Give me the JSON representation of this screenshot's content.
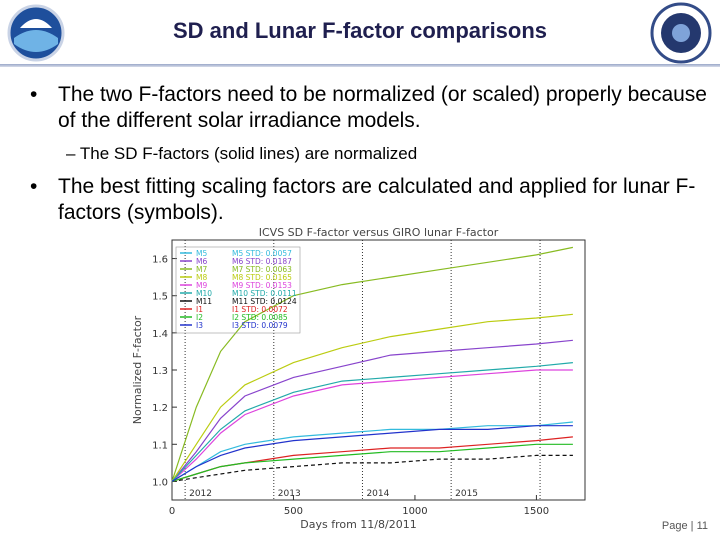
{
  "header": {
    "title": "SD and Lunar F-factor comparisons"
  },
  "bullets": [
    {
      "text": "The two F-factors need to be normalized (or scaled) properly because of the different solar irradiance models.",
      "sub": [
        "The SD F-factors (solid lines) are normalized"
      ]
    },
    {
      "text": "The best fitting scaling factors are calculated  and applied for lunar F-factors (symbols)."
    }
  ],
  "chart_data": {
    "type": "line",
    "title": "ICVS SD F-factor versus GIRO lunar F-factor",
    "x_label": "Days from 11/8/2011",
    "y_label": "Normalized F-factor",
    "x": [
      0,
      100,
      200,
      300,
      500,
      700,
      900,
      1100,
      1300,
      1500,
      1650
    ],
    "xlim": [
      0,
      1700
    ],
    "ylim": [
      0.95,
      1.65
    ],
    "xticks": [
      0,
      500,
      1000,
      1500
    ],
    "yticks": [
      {
        "value": 1,
        "label": "1.0"
      },
      1.1,
      1.2,
      1.3,
      1.4,
      1.5,
      1.6
    ],
    "year_lines": [
      {
        "value": 54,
        "label": "2012"
      },
      {
        "value": 419,
        "label": "2013"
      },
      {
        "value": 784,
        "label": "2014"
      },
      {
        "value": 1149,
        "label": "2015"
      },
      {
        "value": 1515,
        "label": ""
      }
    ],
    "series": [
      {
        "name": "M5",
        "std": "M5 STD: 0.0057",
        "color": "#33bbdd",
        "values": [
          1.0,
          1.04,
          1.08,
          1.1,
          1.12,
          1.13,
          1.14,
          1.14,
          1.15,
          1.15,
          1.16
        ]
      },
      {
        "name": "M6",
        "std": "M6 STD: 0.0187",
        "color": "#8844cc",
        "values": [
          1.0,
          1.08,
          1.17,
          1.23,
          1.28,
          1.31,
          1.34,
          1.35,
          1.36,
          1.37,
          1.38
        ]
      },
      {
        "name": "M7",
        "std": "M7 STD: 0.0063",
        "color": "#88bb22",
        "values": [
          1.0,
          1.2,
          1.35,
          1.43,
          1.5,
          1.53,
          1.55,
          1.57,
          1.59,
          1.61,
          1.63
        ]
      },
      {
        "name": "M8",
        "std": "M8 STD: 0.0165",
        "color": "#bbcc11",
        "values": [
          1.0,
          1.1,
          1.2,
          1.26,
          1.32,
          1.36,
          1.39,
          1.41,
          1.43,
          1.44,
          1.45
        ]
      },
      {
        "name": "M9",
        "std": "M9 STD: 0.0153",
        "color": "#dd44dd",
        "values": [
          1.0,
          1.06,
          1.13,
          1.18,
          1.23,
          1.26,
          1.27,
          1.28,
          1.29,
          1.3,
          1.3
        ]
      },
      {
        "name": "M10",
        "std": "M10 STD: 0.0111",
        "color": "#22aaaa",
        "values": [
          1.0,
          1.07,
          1.14,
          1.19,
          1.24,
          1.27,
          1.28,
          1.29,
          1.3,
          1.31,
          1.32
        ]
      },
      {
        "name": "M11",
        "std": "M11 STD: 0.0124",
        "color": "#111111",
        "dashed": true,
        "values": [
          1.0,
          1.01,
          1.02,
          1.03,
          1.04,
          1.05,
          1.05,
          1.06,
          1.06,
          1.07,
          1.07
        ]
      },
      {
        "name": "I1",
        "std": "I1 STD: 0.0072",
        "color": "#dd2222",
        "values": [
          1.0,
          1.02,
          1.04,
          1.05,
          1.07,
          1.08,
          1.09,
          1.09,
          1.1,
          1.11,
          1.12
        ]
      },
      {
        "name": "I2",
        "std": "I2 STD: 0.0085",
        "color": "#22bb22",
        "values": [
          1.0,
          1.02,
          1.04,
          1.05,
          1.06,
          1.07,
          1.08,
          1.08,
          1.09,
          1.1,
          1.1
        ]
      },
      {
        "name": "I3",
        "std": "I3 STD: 0.0079",
        "color": "#2233cc",
        "values": [
          1.0,
          1.04,
          1.07,
          1.09,
          1.11,
          1.12,
          1.13,
          1.14,
          1.14,
          1.15,
          1.15
        ]
      }
    ]
  },
  "footer": {
    "page": "Page | 11"
  }
}
